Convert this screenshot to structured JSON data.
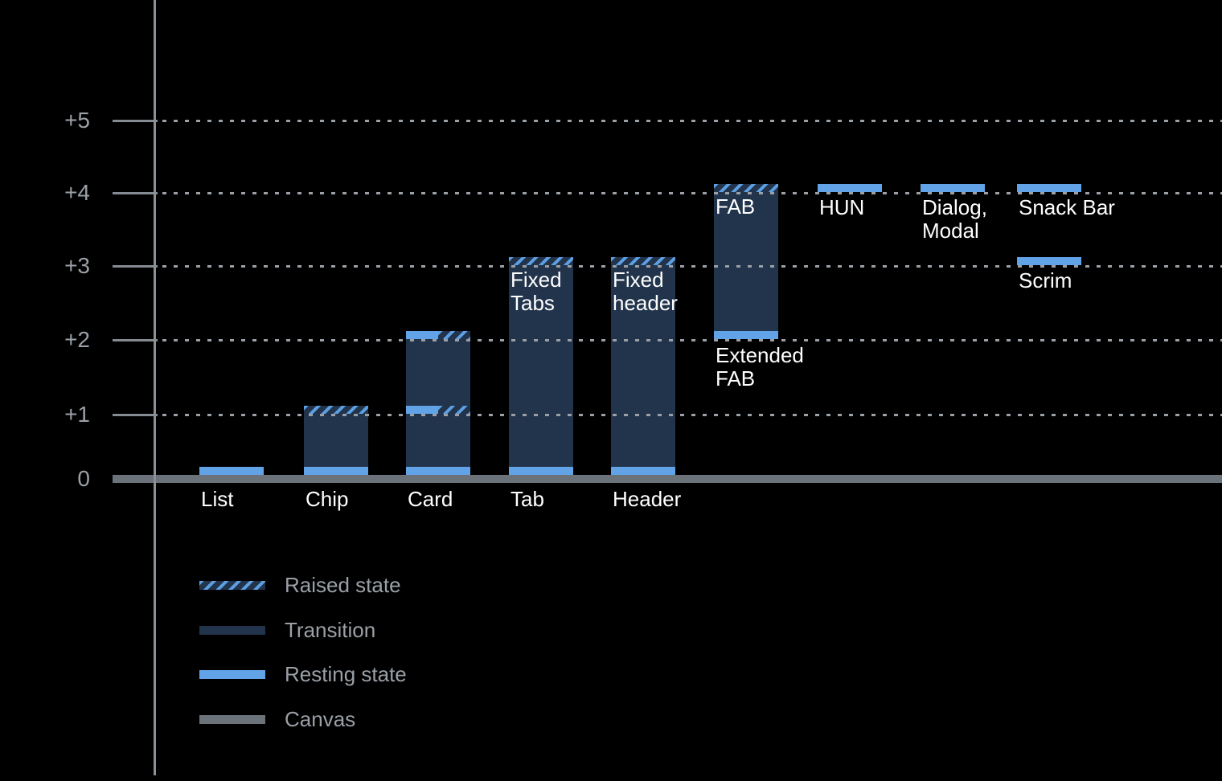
{
  "chart_data": {
    "type": "bar",
    "subtype": "material-elevation-diagram",
    "title": "",
    "xlabel": "",
    "ylabel": "",
    "ylim": [
      0,
      5
    ],
    "grid": "horizontal-dotted",
    "legend_position": "bottom-left",
    "yticks": [
      {
        "label": "+5",
        "value": 5
      },
      {
        "label": "+4",
        "value": 4
      },
      {
        "label": "+3",
        "value": 3
      },
      {
        "label": "+2",
        "value": 2
      },
      {
        "label": "+1",
        "value": 1
      },
      {
        "label": "0",
        "value": 0
      }
    ],
    "bars": [
      {
        "name": "List",
        "column": 0,
        "segments": [
          {
            "kind": "resting",
            "at": 0
          }
        ],
        "labels": [
          {
            "lines": [
              "List"
            ],
            "placement": "axis"
          }
        ]
      },
      {
        "name": "Chip",
        "column": 1,
        "segments": [
          {
            "kind": "raised",
            "at": 1
          },
          {
            "kind": "transition",
            "from": 1,
            "to": 0
          },
          {
            "kind": "resting",
            "at": 0
          }
        ],
        "labels": [
          {
            "lines": [
              "Chip"
            ],
            "placement": "axis"
          }
        ]
      },
      {
        "name": "Card",
        "column": 2,
        "segments": [
          {
            "kind": "resting-raised",
            "at": 2
          },
          {
            "kind": "transition",
            "from": 2,
            "to": 1
          },
          {
            "kind": "resting-raised",
            "at": 1
          },
          {
            "kind": "transition",
            "from": 1,
            "to": 0
          },
          {
            "kind": "resting",
            "at": 0
          }
        ],
        "labels": [
          {
            "lines": [
              "Card"
            ],
            "placement": "axis"
          }
        ]
      },
      {
        "name": "Tab",
        "column": 3,
        "segments": [
          {
            "kind": "raised",
            "at": 3
          },
          {
            "kind": "transition",
            "from": 3,
            "to": 0
          },
          {
            "kind": "resting",
            "at": 0
          }
        ],
        "labels": [
          {
            "lines": [
              "Tab"
            ],
            "placement": "axis"
          },
          {
            "lines": [
              "Fixed",
              "Tabs"
            ],
            "placement": "inside-top"
          }
        ]
      },
      {
        "name": "Header",
        "column": 4,
        "segments": [
          {
            "kind": "raised",
            "at": 3
          },
          {
            "kind": "transition",
            "from": 3,
            "to": 0
          },
          {
            "kind": "resting",
            "at": 0
          }
        ],
        "labels": [
          {
            "lines": [
              "Header"
            ],
            "placement": "axis"
          },
          {
            "lines": [
              "Fixed",
              "header"
            ],
            "placement": "inside-top"
          }
        ]
      },
      {
        "name": "FAB",
        "column": 5,
        "segments": [
          {
            "kind": "raised",
            "at": 4
          },
          {
            "kind": "transition",
            "from": 4,
            "to": 2
          },
          {
            "kind": "resting",
            "at": 2
          }
        ],
        "labels": [
          {
            "lines": [
              "FAB"
            ],
            "placement": "inside-top"
          },
          {
            "lines": [
              "Extended",
              "FAB"
            ],
            "placement": "below-bar"
          }
        ]
      },
      {
        "name": "HUN",
        "column": 6,
        "segments": [
          {
            "kind": "resting",
            "at": 4
          }
        ],
        "labels": [
          {
            "lines": [
              "HUN"
            ],
            "placement": "below-strip"
          }
        ]
      },
      {
        "name": "Dialog, Modal",
        "column": 7,
        "segments": [
          {
            "kind": "resting",
            "at": 4
          }
        ],
        "labels": [
          {
            "lines": [
              "Dialog,",
              "Modal"
            ],
            "placement": "below-strip"
          }
        ]
      },
      {
        "name": "Snack Bar",
        "column": 8,
        "segments": [
          {
            "kind": "resting",
            "at": 4
          }
        ],
        "labels": [
          {
            "lines": [
              "Snack Bar"
            ],
            "placement": "below-strip"
          }
        ]
      },
      {
        "name": "Scrim",
        "column": 8,
        "segments": [
          {
            "kind": "resting",
            "at": 3
          }
        ],
        "labels": [
          {
            "lines": [
              "Scrim"
            ],
            "placement": "below-strip"
          }
        ]
      }
    ],
    "colors": {
      "background": "#000000",
      "transition": "#22344b",
      "resting": "#62a3e8",
      "raised_stripe": "#5d9fe3",
      "canvas": "#6b727a",
      "gridline": "#9aa0a6",
      "axis": "#8b9199",
      "tick_label": "#9aa0a6",
      "bar_label": "#ffffff",
      "legend_text": "#9aa0a6"
    }
  },
  "legend": {
    "items": [
      {
        "kind": "raised",
        "label": "Raised state"
      },
      {
        "kind": "transition",
        "label": "Transition"
      },
      {
        "kind": "resting",
        "label": "Resting state"
      },
      {
        "kind": "canvas",
        "label": "Canvas"
      }
    ]
  }
}
